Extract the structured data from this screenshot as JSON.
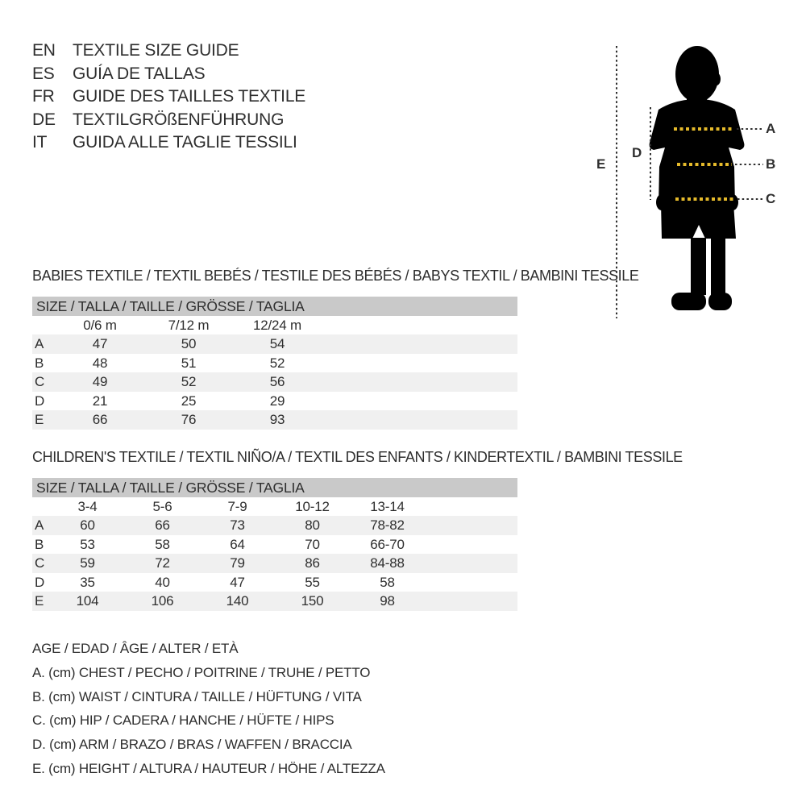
{
  "colors": {
    "ink": "#2e2e2e",
    "accent": "#e5ba2b",
    "bar": "#c9c9c9",
    "stripe": "#f0f0f0",
    "silhouette": "#000000"
  },
  "languages": [
    {
      "code": "EN",
      "title": "TEXTILE SIZE GUIDE"
    },
    {
      "code": "ES",
      "title": "GUÍA DE TALLAS"
    },
    {
      "code": "FR",
      "title": "GUIDE DES TAILLES TEXTILE"
    },
    {
      "code": "DE",
      "title": "TEXTILGRÖßENFÜHRUNG"
    },
    {
      "code": "IT",
      "title": "GUIDA ALLE TAGLIE TESSILI"
    }
  ],
  "diagram": {
    "labels": {
      "A": "A",
      "B": "B",
      "C": "C",
      "D": "D",
      "E": "E"
    }
  },
  "babies": {
    "title": "BABIES TEXTILE / TEXTIL BEBÉS / TESTILE DES BÉBÉS / BABYS TEXTIL / BAMBINI TESSILE",
    "size_header": "SIZE / TALLA / TAILLE / GRÖSSE / TAGLIA",
    "columns": [
      "0/6 m",
      "7/12 m",
      "12/24 m"
    ],
    "rows": [
      {
        "label": "A",
        "values": [
          "47",
          "50",
          "54"
        ]
      },
      {
        "label": "B",
        "values": [
          "48",
          "51",
          "52"
        ]
      },
      {
        "label": "C",
        "values": [
          "49",
          "52",
          "56"
        ]
      },
      {
        "label": "D",
        "values": [
          "21",
          "25",
          "29"
        ]
      },
      {
        "label": "E",
        "values": [
          "66",
          "76",
          "93"
        ]
      }
    ]
  },
  "children": {
    "title": "CHILDREN'S TEXTILE / TEXTIL NIÑO/A / TEXTIL DES ENFANTS / KINDERTEXTIL / BAMBINI TESSILE",
    "size_header": "SIZE / TALLA / TAILLE / GRÖSSE / TAGLIA",
    "columns": [
      "3-4",
      "5-6",
      "7-9",
      "10-12",
      "13-14"
    ],
    "rows": [
      {
        "label": "A",
        "values": [
          "60",
          "66",
          "73",
          "80",
          "78-82"
        ]
      },
      {
        "label": "B",
        "values": [
          "53",
          "58",
          "64",
          "70",
          "66-70"
        ]
      },
      {
        "label": "C",
        "values": [
          "59",
          "72",
          "79",
          "86",
          "84-88"
        ]
      },
      {
        "label": "D",
        "values": [
          "35",
          "40",
          "47",
          "55",
          "58"
        ]
      },
      {
        "label": "E",
        "values": [
          "104",
          "106",
          "140",
          "150",
          "98"
        ]
      }
    ]
  },
  "legend": [
    "AGE / EDAD / ÂGE / ALTER / ETÀ",
    "A. (cm) CHEST / PECHO / POITRINE / TRUHE / PETTO",
    "B. (cm) WAIST / CINTURA / TAILLE / HÜFTUNG / VITA",
    "C. (cm) HIP / CADERA / HANCHE / HÜFTE / HIPS",
    "D. (cm) ARM / BRAZO / BRAS / WAFFEN / BRACCIA",
    "E. (cm) HEIGHT / ALTURA / HAUTEUR / HÖHE / ALTEZZA"
  ]
}
